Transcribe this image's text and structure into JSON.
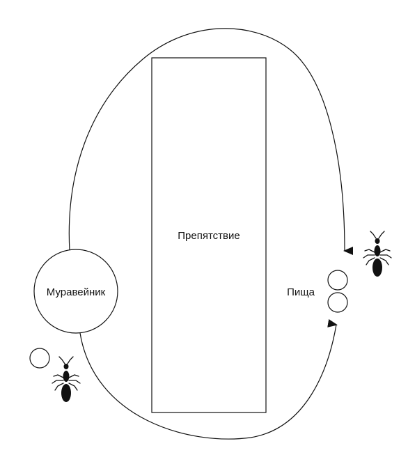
{
  "labels": {
    "obstacle": "Препятствие",
    "nest": "Муравейник",
    "food": "Пища"
  },
  "colors": {
    "line": "#111111",
    "ant": "#111111",
    "background": "#ffffff"
  },
  "icons": [
    "ant-icon",
    "ant-icon",
    "food-pellet-icon",
    "arrow-head-icon"
  ]
}
